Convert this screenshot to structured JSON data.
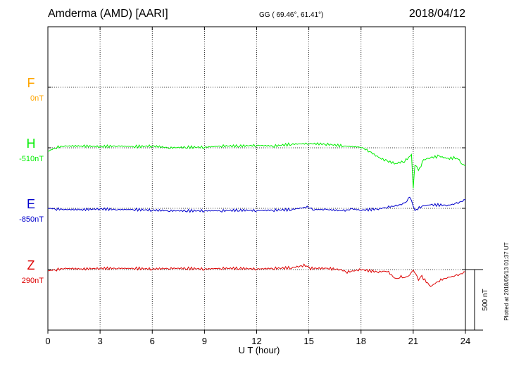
{
  "header": {
    "station": "Amderma (AMD)  [AARI]",
    "coords": "GG ( 69.46°,  61.41°)",
    "date": "2018/04/12"
  },
  "side_note": "Plotted at 2018/05/13 01:37 UT",
  "colors": {
    "F": "#ffa500",
    "H": "#00ee00",
    "E": "#0000cc",
    "Z": "#dd0000",
    "grid": "#000000"
  },
  "chart_data": {
    "type": "line",
    "xlabel": "U T (hour)",
    "xlim": [
      0,
      24
    ],
    "xticks": [
      "0",
      "3",
      "6",
      "9",
      "12",
      "15",
      "18",
      "21",
      "24"
    ],
    "scale_bar": {
      "label": "500 nT",
      "value_nT": 500
    },
    "series": [
      {
        "name": "F",
        "baseline_label": "0nT",
        "hours": [],
        "values": []
      },
      {
        "name": "H",
        "baseline_label": "-510nT",
        "hours": [
          0,
          0.5,
          1,
          2,
          3,
          4,
          5,
          6,
          7,
          8,
          9,
          10,
          11,
          12,
          13,
          14,
          15,
          16,
          17,
          18,
          18.5,
          19,
          19.5,
          20,
          20.5,
          20.9,
          21.0,
          21.1,
          21.3,
          21.6,
          22,
          22.5,
          23,
          23.5,
          23.8,
          24
        ],
        "values": [
          -540,
          -505,
          -495,
          -495,
          -500,
          -495,
          -500,
          -495,
          -510,
          -505,
          -505,
          -495,
          -495,
          -490,
          -495,
          -480,
          -475,
          -480,
          -495,
          -505,
          -540,
          -590,
          -620,
          -640,
          -620,
          -570,
          -840,
          -650,
          -700,
          -610,
          -590,
          -580,
          -600,
          -590,
          -640,
          -660
        ]
      },
      {
        "name": "E",
        "baseline_label": "-850nT",
        "hours": [
          0,
          0.5,
          1,
          2,
          3,
          4,
          5,
          6,
          7,
          8,
          9,
          10,
          11,
          12,
          13,
          14,
          14.9,
          15.3,
          16,
          17,
          17.5,
          18,
          19,
          19.5,
          20,
          20.5,
          20.8,
          21.0,
          21.1,
          21.5,
          22,
          23,
          23.5,
          24
        ],
        "values": [
          -850,
          -855,
          -860,
          -860,
          -855,
          -860,
          -860,
          -865,
          -870,
          -870,
          -870,
          -870,
          -865,
          -868,
          -865,
          -860,
          -840,
          -860,
          -860,
          -870,
          -855,
          -865,
          -855,
          -840,
          -830,
          -810,
          -760,
          -830,
          -870,
          -830,
          -820,
          -825,
          -810,
          -780
        ]
      },
      {
        "name": "Z",
        "baseline_label": "290nT",
        "hours": [
          0,
          0.5,
          1,
          2,
          3,
          4,
          5,
          6,
          7,
          8,
          9,
          10,
          11,
          12,
          13,
          14,
          14.8,
          15.1,
          16,
          16.8,
          17.2,
          18,
          19,
          19.5,
          20,
          20.3,
          20.6,
          20.8,
          21.0,
          21.3,
          21.5,
          22,
          22.5,
          23,
          23.5,
          24
        ],
        "values": [
          280,
          290,
          300,
          295,
          300,
          300,
          300,
          295,
          300,
          300,
          295,
          300,
          300,
          295,
          300,
          305,
          325,
          300,
          300,
          290,
          270,
          290,
          270,
          280,
          210,
          230,
          220,
          250,
          290,
          210,
          230,
          150,
          200,
          225,
          240,
          270
        ]
      }
    ]
  }
}
